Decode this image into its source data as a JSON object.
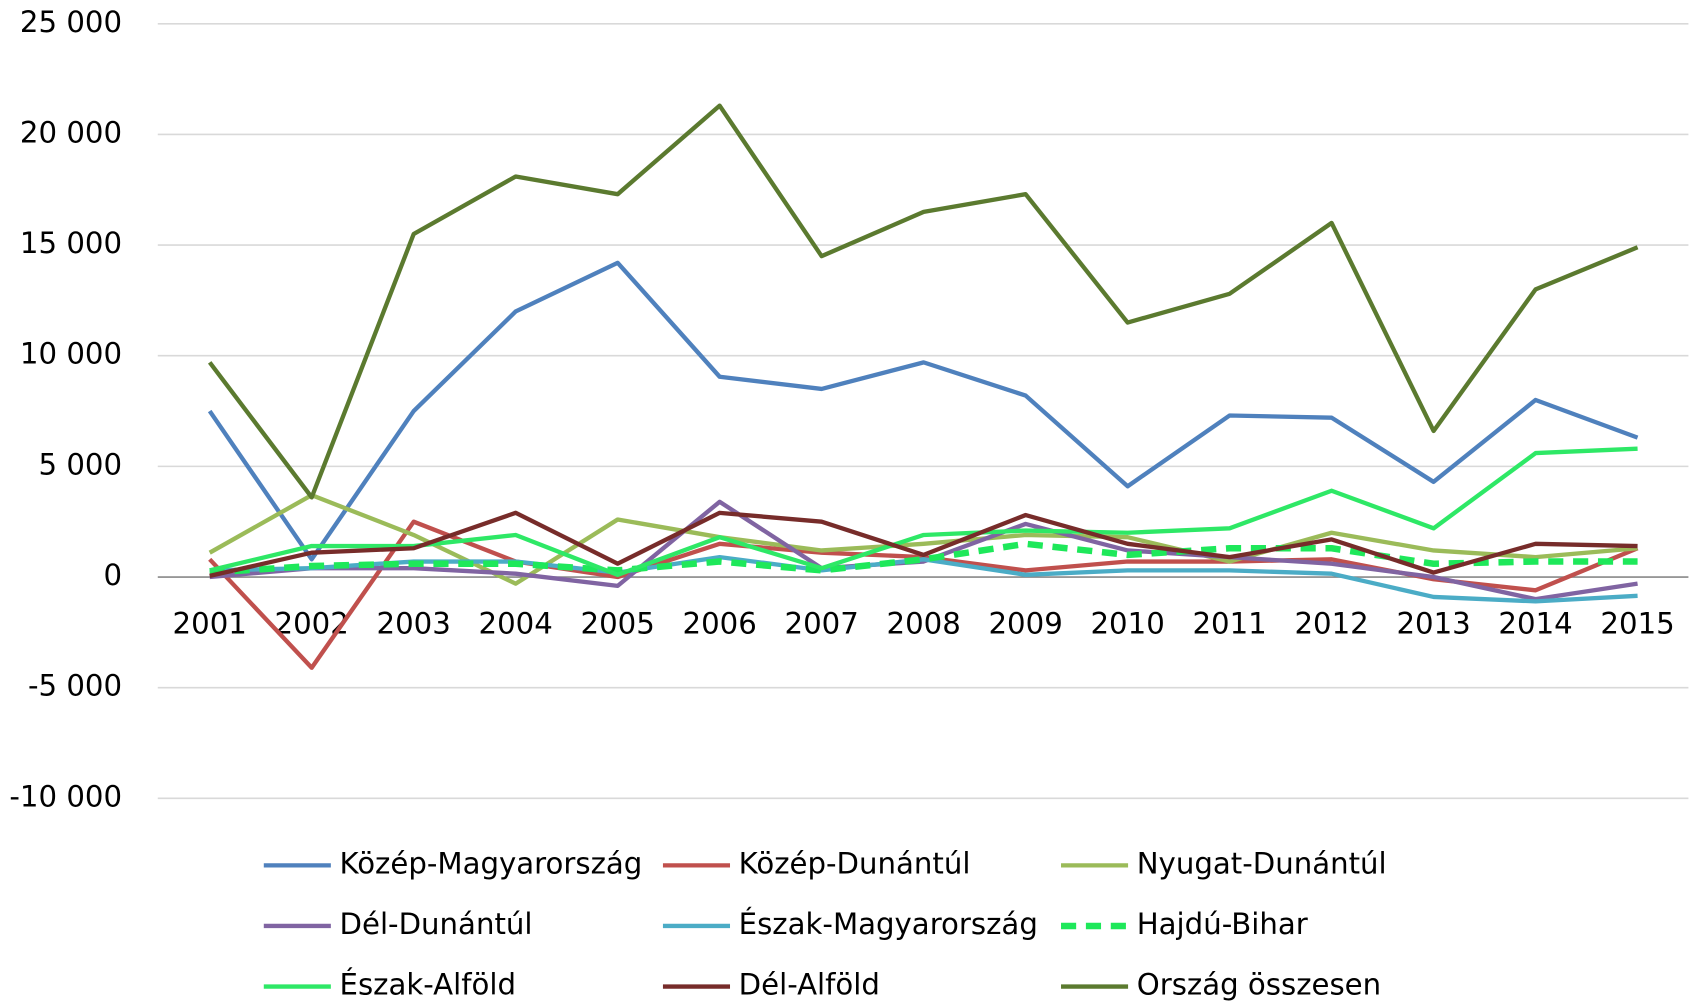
{
  "chart_data": {
    "type": "line",
    "categories": [
      "2001",
      "2002",
      "2003",
      "2004",
      "2005",
      "2006",
      "2007",
      "2008",
      "2009",
      "2010",
      "2011",
      "2012",
      "2013",
      "2014",
      "2015"
    ],
    "series": [
      {
        "name": "Közép-Magyarország",
        "color": "#4f81bd",
        "values": [
          7500,
          800,
          7500,
          12000,
          14200,
          9050,
          8500,
          9700,
          8200,
          4100,
          7300,
          7200,
          4300,
          8000,
          6300
        ]
      },
      {
        "name": "Közép-Dunántúl",
        "color": "#c0504d",
        "values": [
          800,
          -4100,
          2500,
          700,
          0,
          1500,
          1100,
          900,
          300,
          700,
          700,
          800,
          -100,
          -600,
          1300
        ]
      },
      {
        "name": "Nyugat-Dunántúl",
        "color": "#9bbb59",
        "values": [
          1100,
          3700,
          1900,
          -300,
          2600,
          1800,
          1200,
          1500,
          1900,
          1800,
          700,
          2000,
          1200,
          900,
          1300
        ]
      },
      {
        "name": "Dél-Dunántúl",
        "color": "#8064a2",
        "values": [
          0,
          400,
          400,
          150,
          -400,
          3400,
          400,
          700,
          2400,
          1200,
          900,
          600,
          0,
          -1000,
          -300
        ]
      },
      {
        "name": "Észak-Magyarország",
        "color": "#4bacc6",
        "values": [
          300,
          400,
          700,
          700,
          200,
          900,
          300,
          800,
          100,
          300,
          300,
          150,
          -900,
          -1100,
          -850
        ]
      },
      {
        "name": "Hajdú-Bihar",
        "color": "#1ee85a",
        "dashed": true,
        "values": [
          200,
          500,
          600,
          600,
          300,
          700,
          300,
          800,
          1500,
          1000,
          1300,
          1300,
          600,
          700,
          700
        ]
      },
      {
        "name": "Észak-Alföld",
        "color": "#2ee866",
        "values": [
          300,
          1400,
          1400,
          1900,
          100,
          1800,
          400,
          1900,
          2100,
          2000,
          2200,
          3900,
          2200,
          5600,
          5800
        ]
      },
      {
        "name": "Dél-Alföld",
        "color": "#772c2a",
        "values": [
          50,
          1100,
          1300,
          2900,
          600,
          2900,
          2500,
          1000,
          2800,
          1500,
          900,
          1700,
          200,
          1500,
          1400
        ]
      },
      {
        "name": "Ország összesen",
        "color": "#5b7a2f",
        "values": [
          9700,
          3600,
          15500,
          18100,
          17300,
          21300,
          14500,
          16500,
          17300,
          11500,
          12800,
          16000,
          6600,
          13000,
          14900
        ]
      }
    ],
    "ylim": [
      -10000,
      25000
    ],
    "yticks": [
      {
        "value": -10000,
        "label": "-10 000"
      },
      {
        "value": -5000,
        "label": "-5 000"
      },
      0,
      {
        "value": 5000,
        "label": "5 000"
      },
      {
        "value": 10000,
        "label": "10 000"
      },
      {
        "value": 15000,
        "label": "15 000"
      },
      {
        "value": 20000,
        "label": "20 000"
      },
      {
        "value": 25000,
        "label": "25 000"
      }
    ],
    "grid": true,
    "legend": "bottom"
  }
}
